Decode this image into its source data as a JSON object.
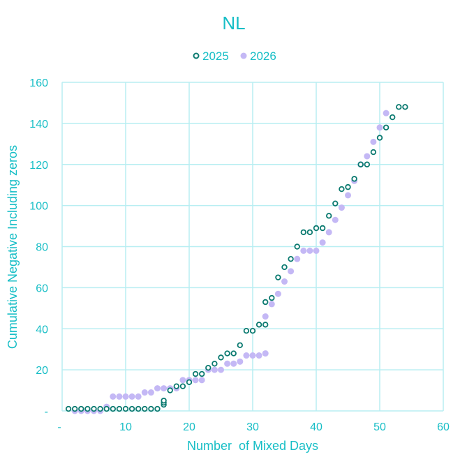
{
  "chart_data": {
    "type": "scatter",
    "title": "NL",
    "xlabel": "Number  of Mixed Days",
    "ylabel": "Cumulative Negative Including zeros",
    "xlim": [
      0,
      60
    ],
    "ylim": [
      0,
      160
    ],
    "x_ticks": [
      "-",
      "10",
      "20",
      "30",
      "40",
      "50",
      "60"
    ],
    "y_ticks": [
      "-",
      "20",
      "40",
      "60",
      "80",
      "100",
      "120",
      "140",
      "160"
    ],
    "grid": true,
    "legend_position": "top-center",
    "colors": {
      "text": "#17BEC6",
      "grid": "#B8EEF2",
      "series_2025": "#0B7A70",
      "series_2026": "#C4B8F5"
    },
    "series": [
      {
        "name": "2025",
        "marker": "hollow-circle",
        "x": [
          1,
          2,
          3,
          4,
          5,
          6,
          7,
          8,
          9,
          10,
          11,
          12,
          13,
          14,
          15,
          16,
          16,
          16,
          17,
          18,
          19,
          20,
          21,
          22,
          23,
          24,
          25,
          26,
          27,
          28,
          29,
          30,
          31,
          32,
          32,
          33,
          34,
          35,
          36,
          37,
          38,
          39,
          40,
          41,
          42,
          43,
          44,
          45,
          46,
          47,
          48,
          49,
          50,
          51,
          52,
          53,
          54
        ],
        "y": [
          1,
          1,
          1,
          1,
          1,
          1,
          1,
          1,
          1,
          1,
          1,
          1,
          1,
          1,
          1,
          3,
          4,
          5,
          10,
          12,
          12,
          14,
          18,
          18,
          21,
          23,
          26,
          28,
          28,
          32,
          39,
          39,
          42,
          42,
          53,
          55,
          65,
          70,
          74,
          80,
          87,
          87,
          89,
          89,
          95,
          101,
          108,
          109,
          113,
          120,
          120,
          126,
          133,
          138,
          143,
          148,
          148
        ]
      },
      {
        "name": "2026",
        "marker": "filled-circle",
        "x": [
          2,
          3,
          4,
          5,
          6,
          7,
          8,
          9,
          10,
          11,
          12,
          13,
          14,
          15,
          16,
          17,
          18,
          19,
          20,
          21,
          22,
          23,
          24,
          25,
          26,
          27,
          28,
          29,
          30,
          31,
          32,
          32,
          33,
          34,
          35,
          36,
          37,
          38,
          39,
          40,
          41,
          42,
          43,
          44,
          45,
          46,
          47,
          48,
          49,
          50,
          51
        ],
        "y": [
          0,
          0,
          0,
          0,
          0,
          2,
          7,
          7,
          7,
          7,
          7,
          9,
          9,
          11,
          11,
          11,
          11,
          15,
          15,
          15,
          15,
          20,
          20,
          20,
          23,
          23,
          24,
          27,
          27,
          27,
          28,
          46,
          52,
          57,
          63,
          68,
          74,
          78,
          78,
          78,
          82,
          87,
          93,
          99,
          105,
          112,
          120,
          124,
          131,
          138,
          145
        ]
      }
    ]
  }
}
